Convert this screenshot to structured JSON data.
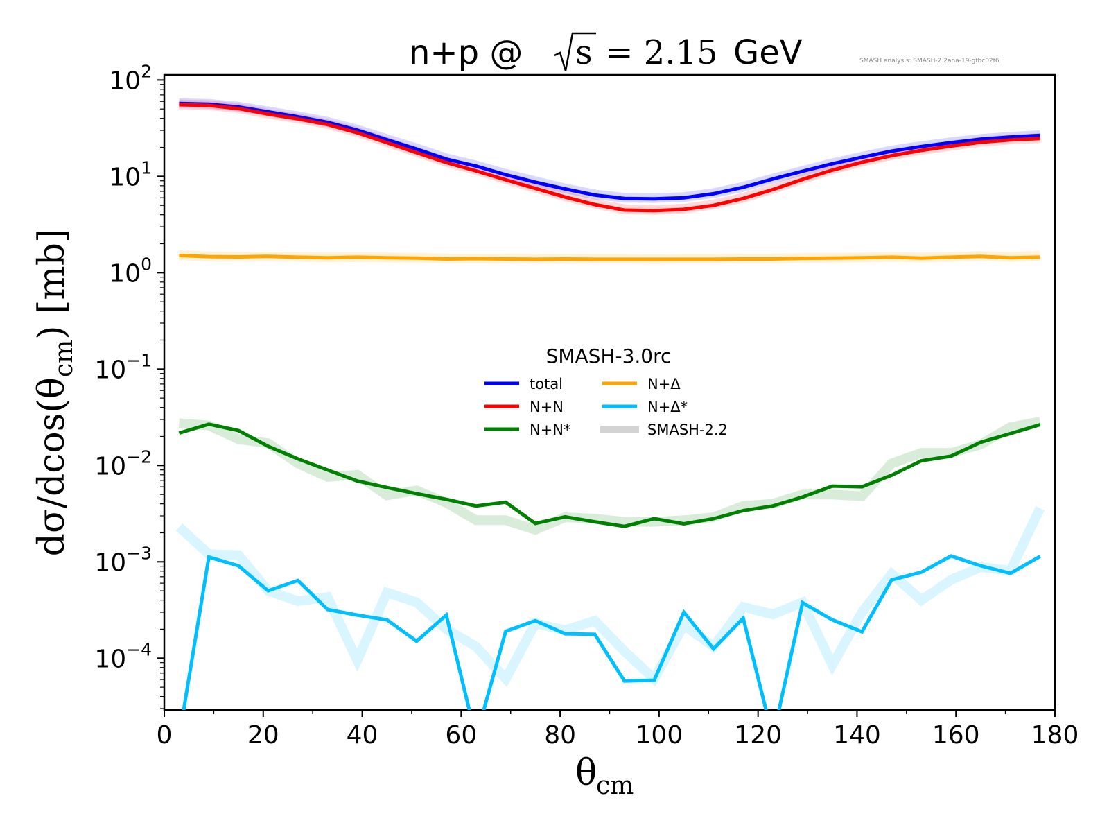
{
  "chart_data": {
    "type": "line",
    "title": {
      "prefix": "n+p @ ",
      "sqrt_symbol": "√",
      "sqrt_arg": "s",
      "equals": " = 2.15 ",
      "unit": "GeV"
    },
    "watermark": "SMASH analysis: SMASH-2.2ana-19-gfbc02f6",
    "xlabel": "θ",
    "xlabel_sub": "cm",
    "ylabel": {
      "main": "dσ/dcos(θ",
      "sub": "cm",
      "tail": ") [mb]"
    },
    "xlim": [
      0,
      180
    ],
    "ylim": [
      2.9e-05,
      113
    ],
    "yscale": "log",
    "grid": false,
    "x_ticks": [
      0,
      20,
      40,
      60,
      80,
      100,
      120,
      140,
      160,
      180
    ],
    "y_ticks": [
      {
        "value": 100,
        "base": "10",
        "exp": "2"
      },
      {
        "value": 10,
        "base": "10",
        "exp": "1"
      },
      {
        "value": 1,
        "base": "10",
        "exp": "0"
      },
      {
        "value": 0.1,
        "base": "10",
        "exp": "−1"
      },
      {
        "value": 0.01,
        "base": "10",
        "exp": "−2"
      },
      {
        "value": 0.001,
        "base": "10",
        "exp": "−3"
      },
      {
        "value": 0.0001,
        "base": "10",
        "exp": "−4"
      }
    ],
    "x": [
      3,
      9,
      15,
      21,
      27,
      33,
      39,
      45,
      51,
      57,
      63,
      69,
      75,
      81,
      87,
      93,
      99,
      105,
      111,
      117,
      123,
      129,
      135,
      141,
      147,
      153,
      159,
      165,
      171,
      177
    ],
    "legend": {
      "title": "SMASH-3.0rc",
      "placement": "center",
      "entries": [
        {
          "label": "total",
          "color": "#0000ff"
        },
        {
          "label": "N+N",
          "color": "#ff0000"
        },
        {
          "label": "N+N*",
          "color": "#008000"
        },
        {
          "label": "N+Δ",
          "color": "#ffa500"
        },
        {
          "label": "N+Δ*",
          "color": "#00bfff"
        },
        {
          "label": "SMASH-2.2",
          "color": "#d3d3d3"
        }
      ]
    },
    "series": [
      {
        "name": "total",
        "version": "SMASH-3.0rc",
        "color": "#0000ff",
        "values": [
          57,
          56.2,
          52.5,
          46.7,
          41.5,
          36.4,
          30.2,
          24.0,
          19.2,
          15.1,
          12.8,
          10.4,
          8.7,
          7.4,
          6.4,
          5.9,
          5.85,
          6.0,
          6.6,
          7.7,
          9.4,
          11.3,
          13.5,
          15.8,
          18.3,
          20.4,
          22.4,
          24.3,
          25.6,
          26.6
        ]
      },
      {
        "name": "N+N",
        "version": "SMASH-3.0rc",
        "color": "#ff0000",
        "values": [
          55.4,
          54.5,
          50.5,
          44.3,
          39.5,
          34.5,
          28.4,
          22.4,
          17.6,
          13.9,
          11.4,
          9.2,
          7.5,
          6.1,
          5.1,
          4.47,
          4.4,
          4.55,
          5.0,
          5.9,
          7.3,
          9.3,
          11.6,
          14.0,
          16.4,
          18.6,
          20.6,
          22.6,
          23.9,
          24.7
        ]
      },
      {
        "name": "N+N*",
        "version": "SMASH-3.0rc",
        "color": "#008000",
        "values": [
          0.0217,
          0.0268,
          0.023,
          0.0158,
          0.0117,
          0.00898,
          0.0069,
          0.0059,
          0.0051,
          0.00445,
          0.0038,
          0.00416,
          0.0025,
          0.00293,
          0.0026,
          0.00233,
          0.0028,
          0.00248,
          0.0028,
          0.0034,
          0.0038,
          0.0047,
          0.0061,
          0.006,
          0.0079,
          0.0112,
          0.0125,
          0.0174,
          0.0214,
          0.0265
        ]
      },
      {
        "name": "N+Δ",
        "version": "SMASH-3.0rc",
        "color": "#ffa500",
        "values": [
          1.51,
          1.47,
          1.46,
          1.48,
          1.45,
          1.43,
          1.45,
          1.43,
          1.42,
          1.39,
          1.4,
          1.39,
          1.38,
          1.39,
          1.38,
          1.38,
          1.38,
          1.38,
          1.38,
          1.39,
          1.39,
          1.41,
          1.42,
          1.43,
          1.45,
          1.42,
          1.45,
          1.48,
          1.43,
          1.45
        ]
      },
      {
        "name": "N+Δ*",
        "version": "SMASH-3.0rc",
        "color": "#00bfff",
        "values": [
          0,
          0.00112,
          0.00091,
          0.0005,
          0.00064,
          0.00032,
          0.00028,
          0.00025,
          0.00015,
          0.00028,
          0,
          0.00019,
          0.000245,
          0.000179,
          0.000177,
          5.8e-05,
          5.9e-05,
          0.0003,
          0.000125,
          0.00026,
          0,
          0.000376,
          0.00025,
          0.000188,
          0.00065,
          0.00078,
          0.00115,
          0.00091,
          0.00076,
          0.00114
        ]
      },
      {
        "name": "total",
        "version": "SMASH-2.2",
        "color": "#0000ff",
        "alpha": 0.15,
        "values": [
          57.5,
          56.6,
          53,
          47.2,
          42,
          36.8,
          30.6,
          24.4,
          19.5,
          15.4,
          13.0,
          10.6,
          8.9,
          7.5,
          6.5,
          6.0,
          5.95,
          6.1,
          6.7,
          7.8,
          9.5,
          11.4,
          13.7,
          16.0,
          18.5,
          20.6,
          22.6,
          24.5,
          25.8,
          26.8
        ]
      },
      {
        "name": "N+N",
        "version": "SMASH-2.2",
        "color": "#ff0000",
        "alpha": 0.15,
        "values": [
          55.8,
          54.9,
          51,
          44.7,
          39.9,
          34.9,
          28.8,
          22.7,
          17.9,
          14.1,
          11.6,
          9.35,
          7.6,
          6.2,
          5.2,
          4.55,
          4.48,
          4.62,
          5.1,
          6.0,
          7.4,
          9.4,
          11.8,
          14.2,
          16.6,
          18.8,
          20.8,
          22.8,
          24.1,
          24.9
        ]
      },
      {
        "name": "N+N*",
        "version": "SMASH-2.2",
        "color": "#008000",
        "alpha": 0.15,
        "values": [
          0.0275,
          0.026,
          0.0187,
          0.017,
          0.0105,
          0.0076,
          0.008,
          0.0049,
          0.0055,
          0.0041,
          0.0027,
          0.0027,
          0.00215,
          0.0029,
          0.0028,
          0.0026,
          0.0026,
          0.0027,
          0.0029,
          0.0038,
          0.004,
          0.005,
          0.005,
          0.0048,
          0.0105,
          0.0135,
          0.0135,
          0.0165,
          0.025,
          0.0285
        ]
      },
      {
        "name": "N+Δ",
        "version": "SMASH-2.2",
        "color": "#ffa500",
        "alpha": 0.15,
        "values": [
          1.52,
          1.48,
          1.47,
          1.48,
          1.46,
          1.44,
          1.45,
          1.44,
          1.43,
          1.4,
          1.4,
          1.4,
          1.39,
          1.39,
          1.39,
          1.39,
          1.38,
          1.39,
          1.39,
          1.4,
          1.4,
          1.42,
          1.43,
          1.44,
          1.46,
          1.44,
          1.46,
          1.49,
          1.46,
          1.5
        ]
      },
      {
        "name": "N+Δ*",
        "version": "SMASH-2.2",
        "color": "#00bfff",
        "alpha": 0.15,
        "values": [
          0.0023,
          0.0012,
          0.00117,
          0.0005,
          0.00039,
          0.00043,
          9.5e-05,
          0.00048,
          0.00038,
          0.0002,
          0.000132,
          6.1e-05,
          0.00023,
          0.000195,
          0.000245,
          0.000118,
          6.1e-05,
          0.00022,
          0.000132,
          0.00034,
          0.000285,
          0.00038,
          8.5e-05,
          0.0003,
          0.00075,
          0.0004,
          0.00065,
          0.00088,
          0.00081,
          0.0036
        ]
      }
    ]
  }
}
